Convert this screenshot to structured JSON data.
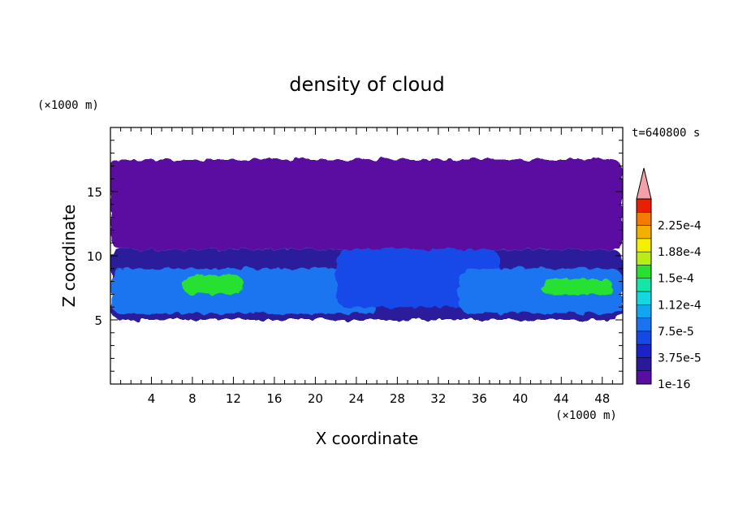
{
  "chart_data": {
    "type": "heatmap",
    "title": "density of cloud",
    "xlabel": "X coordinate",
    "ylabel": "Z coordinate",
    "x_unit": "(×1000 m)",
    "y_unit": "(×1000 m)",
    "time_label": "t=640800 s",
    "xlim": [
      0,
      50
    ],
    "ylim": [
      0,
      20
    ],
    "x_ticks": [
      4,
      8,
      12,
      16,
      20,
      24,
      28,
      32,
      36,
      40,
      44,
      48
    ],
    "y_ticks": [
      5,
      10,
      15
    ],
    "colorbar": {
      "labels": [
        "1e-16",
        "3.75e-5",
        "7.5e-5",
        "1.12e-4",
        "1.5e-4",
        "1.88e-4",
        "2.25e-4"
      ],
      "levels": [
        1e-16,
        1.875e-05,
        3.75e-05,
        5.625e-05,
        7.5e-05,
        9.375e-05,
        0.0001125,
        0.00013125,
        0.00015,
        0.00016875,
        0.0001875,
        0.00020625,
        0.000225,
        0.00024375
      ],
      "colors": [
        "#5a0da0",
        "#2a1a9a",
        "#1a22c8",
        "#1648e8",
        "#1a74f0",
        "#12a6f0",
        "#14d8e0",
        "#14e6a8",
        "#28e030",
        "#b8ee14",
        "#f4f000",
        "#f4b000",
        "#f47a00",
        "#e82000"
      ],
      "extend_color": "#f4a0a8"
    },
    "regions": [
      {
        "name": "upper cloud layer",
        "x_range": [
          0,
          50
        ],
        "z_range": [
          10.5,
          17.5
        ],
        "value": 1e-16
      },
      {
        "name": "lower cloud band",
        "x_range": [
          0,
          50
        ],
        "z_range": [
          5,
          10.5
        ],
        "value": 1.875e-05
      },
      {
        "name": "left core",
        "x_range": [
          0,
          26
        ],
        "z_range": [
          5.5,
          9
        ],
        "value": 7.5e-05
      },
      {
        "name": "left maximum",
        "x_range": [
          7,
          13
        ],
        "z_range": [
          7,
          8.5
        ],
        "value": 0.00015
      },
      {
        "name": "central updraft",
        "x_range": [
          22,
          38
        ],
        "z_range": [
          6,
          10.5
        ],
        "value": 5.625e-05
      },
      {
        "name": "right core",
        "x_range": [
          34,
          50
        ],
        "z_range": [
          5.5,
          9
        ],
        "value": 7.5e-05
      },
      {
        "name": "right maximum",
        "x_range": [
          42,
          49
        ],
        "z_range": [
          7,
          8.2
        ],
        "value": 0.00015
      }
    ]
  }
}
